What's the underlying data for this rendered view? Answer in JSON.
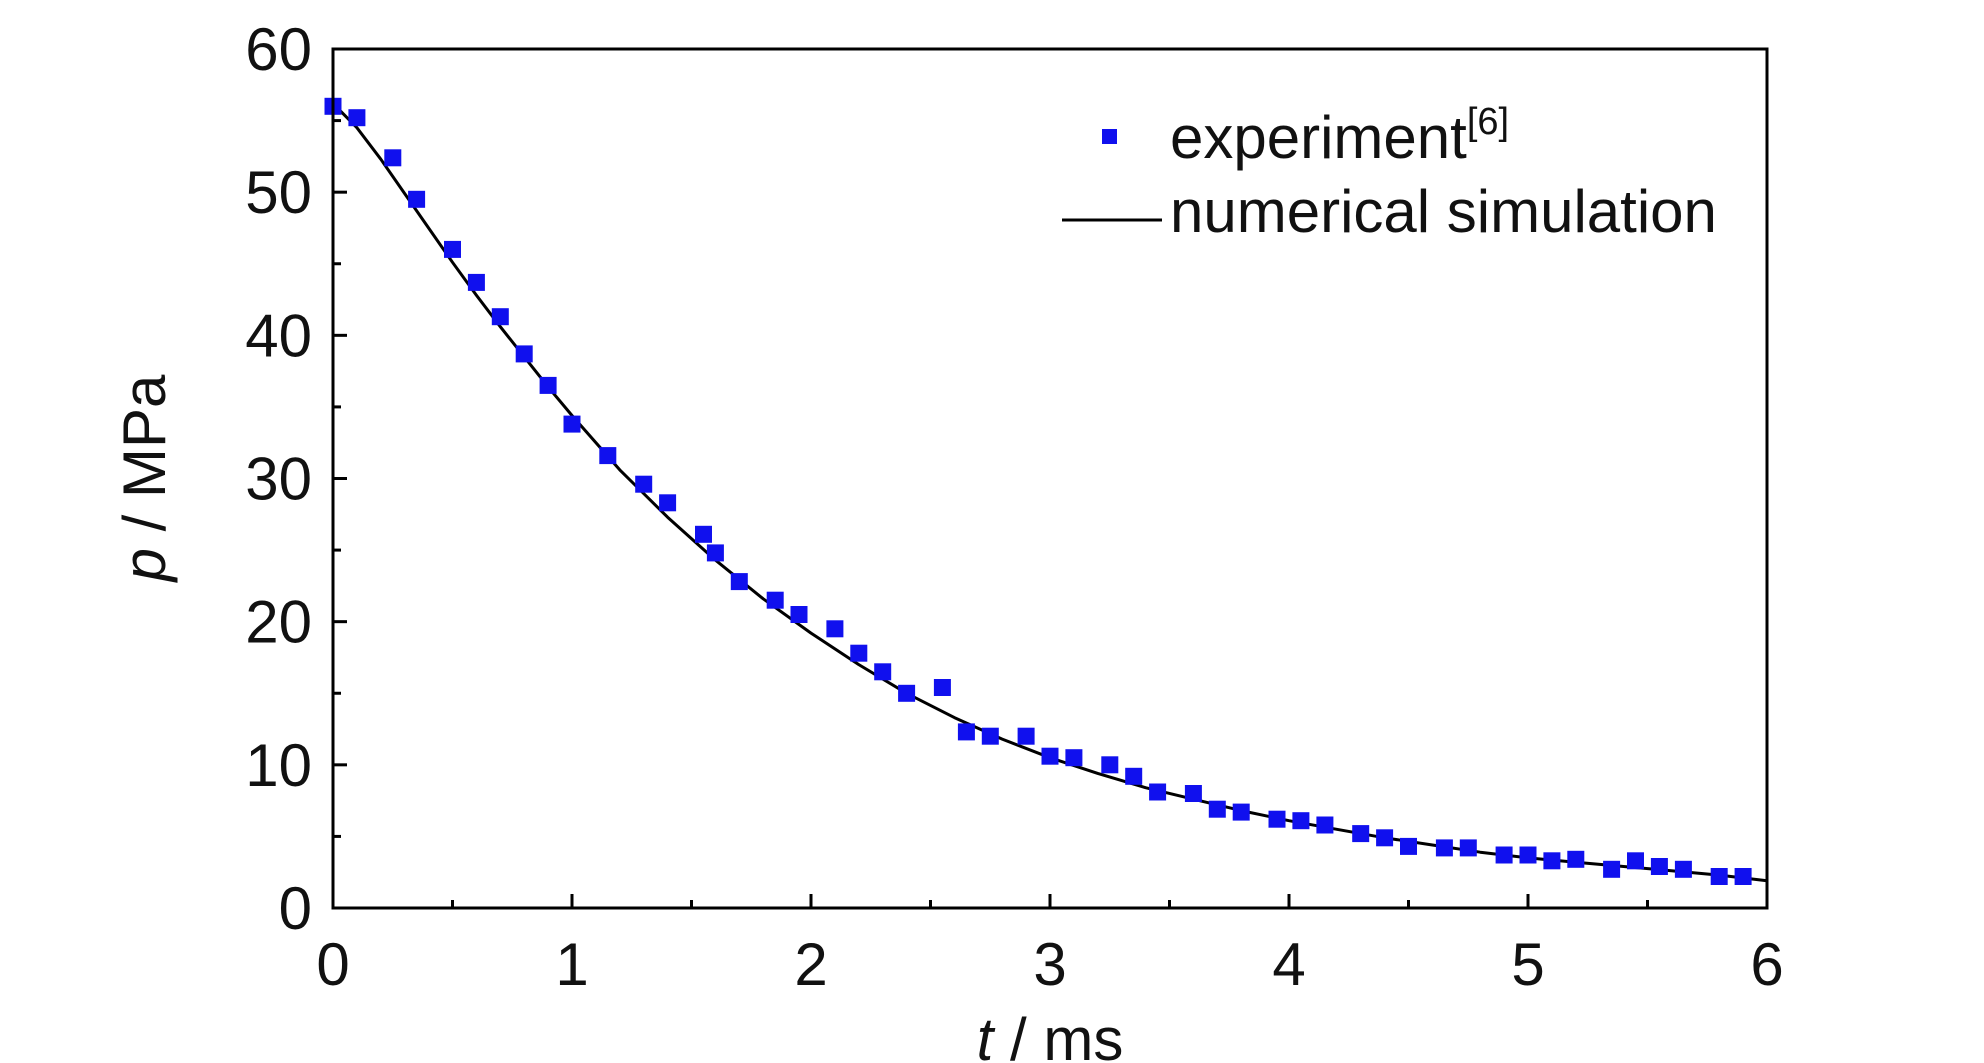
{
  "chart_data": {
    "type": "scatter",
    "title": "",
    "xlabel": {
      "symbol": "t",
      "unit": " / ms"
    },
    "ylabel": {
      "symbol": "p",
      "unit": " / MPa"
    },
    "xlim": [
      0,
      6
    ],
    "ylim": [
      0,
      60
    ],
    "x_ticks": [
      0,
      1,
      2,
      3,
      4,
      5,
      6
    ],
    "y_ticks": [
      0,
      10,
      20,
      30,
      40,
      50,
      60
    ],
    "grid": false,
    "legend_position": "top-right",
    "series": [
      {
        "name": "experiment",
        "name_superscript": "[6]",
        "type": "scatter",
        "marker": "square",
        "color": "#1010ee",
        "points": [
          [
            0.0,
            56.0
          ],
          [
            0.1,
            55.2
          ],
          [
            0.25,
            52.4
          ],
          [
            0.35,
            49.5
          ],
          [
            0.5,
            46.0
          ],
          [
            0.6,
            43.7
          ],
          [
            0.7,
            41.3
          ],
          [
            0.8,
            38.7
          ],
          [
            0.9,
            36.5
          ],
          [
            1.0,
            33.8
          ],
          [
            1.15,
            31.6
          ],
          [
            1.3,
            29.6
          ],
          [
            1.4,
            28.3
          ],
          [
            1.55,
            26.1
          ],
          [
            1.6,
            24.8
          ],
          [
            1.7,
            22.8
          ],
          [
            1.85,
            21.5
          ],
          [
            1.95,
            20.5
          ],
          [
            2.1,
            19.5
          ],
          [
            2.2,
            17.8
          ],
          [
            2.3,
            16.5
          ],
          [
            2.4,
            15.0
          ],
          [
            2.55,
            15.4
          ],
          [
            2.65,
            12.3
          ],
          [
            2.75,
            12.0
          ],
          [
            2.9,
            12.0
          ],
          [
            3.0,
            10.6
          ],
          [
            3.1,
            10.5
          ],
          [
            3.25,
            10.0
          ],
          [
            3.35,
            9.2
          ],
          [
            3.45,
            8.1
          ],
          [
            3.6,
            8.0
          ],
          [
            3.7,
            6.9
          ],
          [
            3.8,
            6.7
          ],
          [
            3.95,
            6.2
          ],
          [
            4.05,
            6.1
          ],
          [
            4.15,
            5.8
          ],
          [
            4.3,
            5.2
          ],
          [
            4.4,
            4.9
          ],
          [
            4.5,
            4.3
          ],
          [
            4.65,
            4.2
          ],
          [
            4.75,
            4.2
          ],
          [
            4.9,
            3.7
          ],
          [
            5.0,
            3.7
          ],
          [
            5.1,
            3.3
          ],
          [
            5.2,
            3.4
          ],
          [
            5.35,
            2.7
          ],
          [
            5.45,
            3.3
          ],
          [
            5.55,
            2.9
          ],
          [
            5.65,
            2.7
          ],
          [
            5.8,
            2.2
          ],
          [
            5.9,
            2.2
          ]
        ]
      },
      {
        "name": "numerical simulation",
        "type": "line",
        "color": "#000000",
        "points": [
          [
            0.0,
            56.2
          ],
          [
            0.1,
            54.5
          ],
          [
            0.2,
            52.3
          ],
          [
            0.3,
            49.9
          ],
          [
            0.4,
            47.5
          ],
          [
            0.5,
            45.1
          ],
          [
            0.6,
            42.8
          ],
          [
            0.7,
            40.6
          ],
          [
            0.8,
            38.5
          ],
          [
            0.9,
            36.4
          ],
          [
            1.0,
            34.4
          ],
          [
            1.2,
            30.6
          ],
          [
            1.4,
            27.3
          ],
          [
            1.6,
            24.3
          ],
          [
            1.8,
            21.6
          ],
          [
            2.0,
            19.2
          ],
          [
            2.2,
            17.0
          ],
          [
            2.4,
            15.0
          ],
          [
            2.6,
            13.3
          ],
          [
            2.8,
            11.8
          ],
          [
            3.0,
            10.5
          ],
          [
            3.2,
            9.4
          ],
          [
            3.4,
            8.4
          ],
          [
            3.6,
            7.6
          ],
          [
            3.8,
            6.8
          ],
          [
            4.0,
            6.1
          ],
          [
            4.2,
            5.5
          ],
          [
            4.4,
            4.9
          ],
          [
            4.6,
            4.4
          ],
          [
            4.8,
            3.9
          ],
          [
            5.0,
            3.5
          ],
          [
            5.2,
            3.2
          ],
          [
            5.4,
            2.9
          ],
          [
            5.6,
            2.6
          ],
          [
            5.8,
            2.3
          ],
          [
            6.0,
            1.9
          ]
        ]
      }
    ]
  }
}
